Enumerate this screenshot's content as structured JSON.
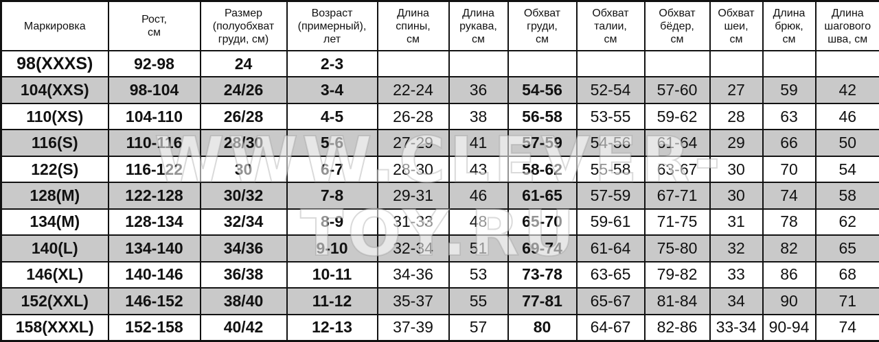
{
  "headers": [
    "Маркировка",
    "Рост,\nсм",
    "Размер\n(полуобхват\nгруди, см)",
    "Возраст\n(примерный),\nлет",
    "Длина\nспины,\nсм",
    "Длина\nрукава,\nсм",
    "Обхват\nгруди,\nсм",
    "Обхват\nталии,\nсм",
    "Обхват\nбёдер,\nсм",
    "Обхват\nшеи,\nсм",
    "Длина\nбрюк,\nсм",
    "Длина\nшагового\nшва, см"
  ],
  "rows": [
    [
      "98(XXXS)",
      "92-98",
      "24",
      "2-3",
      "",
      "",
      "",
      "",
      "",
      "",
      "",
      ""
    ],
    [
      "104(XXS)",
      "98-104",
      "24/26",
      "3-4",
      "22-24",
      "36",
      "54-56",
      "52-54",
      "57-60",
      "27",
      "59",
      "42"
    ],
    [
      "110(XS)",
      "104-110",
      "26/28",
      "4-5",
      "26-28",
      "38",
      "56-58",
      "53-55",
      "59-62",
      "28",
      "63",
      "46"
    ],
    [
      "116(S)",
      "110-116",
      "28/30",
      "5-6",
      "27-29",
      "41",
      "57-59",
      "54-56",
      "61-64",
      "29",
      "66",
      "50"
    ],
    [
      "122(S)",
      "116-122",
      "30",
      "6-7",
      "28-30",
      "43",
      "58-62",
      "55-58",
      "63-67",
      "30",
      "70",
      "54"
    ],
    [
      "128(M)",
      "122-128",
      "30/32",
      "7-8",
      "29-31",
      "46",
      "61-65",
      "57-59",
      "67-71",
      "30",
      "74",
      "58"
    ],
    [
      "134(M)",
      "128-134",
      "32/34",
      "8-9",
      "31-33",
      "48",
      "65-70",
      "59-61",
      "71-75",
      "31",
      "78",
      "62"
    ],
    [
      "140(L)",
      "134-140",
      "34/36",
      "9-10",
      "32-34",
      "51",
      "69-74",
      "61-64",
      "75-80",
      "32",
      "82",
      "65"
    ],
    [
      "146(XL)",
      "140-146",
      "36/38",
      "10-11",
      "34-36",
      "53",
      "73-78",
      "63-65",
      "79-82",
      "33",
      "86",
      "68"
    ],
    [
      "152(XXL)",
      "146-152",
      "38/40",
      "11-12",
      "35-37",
      "55",
      "77-81",
      "65-67",
      "81-84",
      "34",
      "90",
      "71"
    ],
    [
      "158(XXXL)",
      "152-158",
      "40/42",
      "12-13",
      "37-39",
      "57",
      "80",
      "64-67",
      "82-86",
      "33-34",
      "90-94",
      "74"
    ]
  ],
  "watermark": "WWW.CLEVER-TOY.RU",
  "colors": {
    "row_alt": "#c9c9c9",
    "border": "#111111"
  }
}
